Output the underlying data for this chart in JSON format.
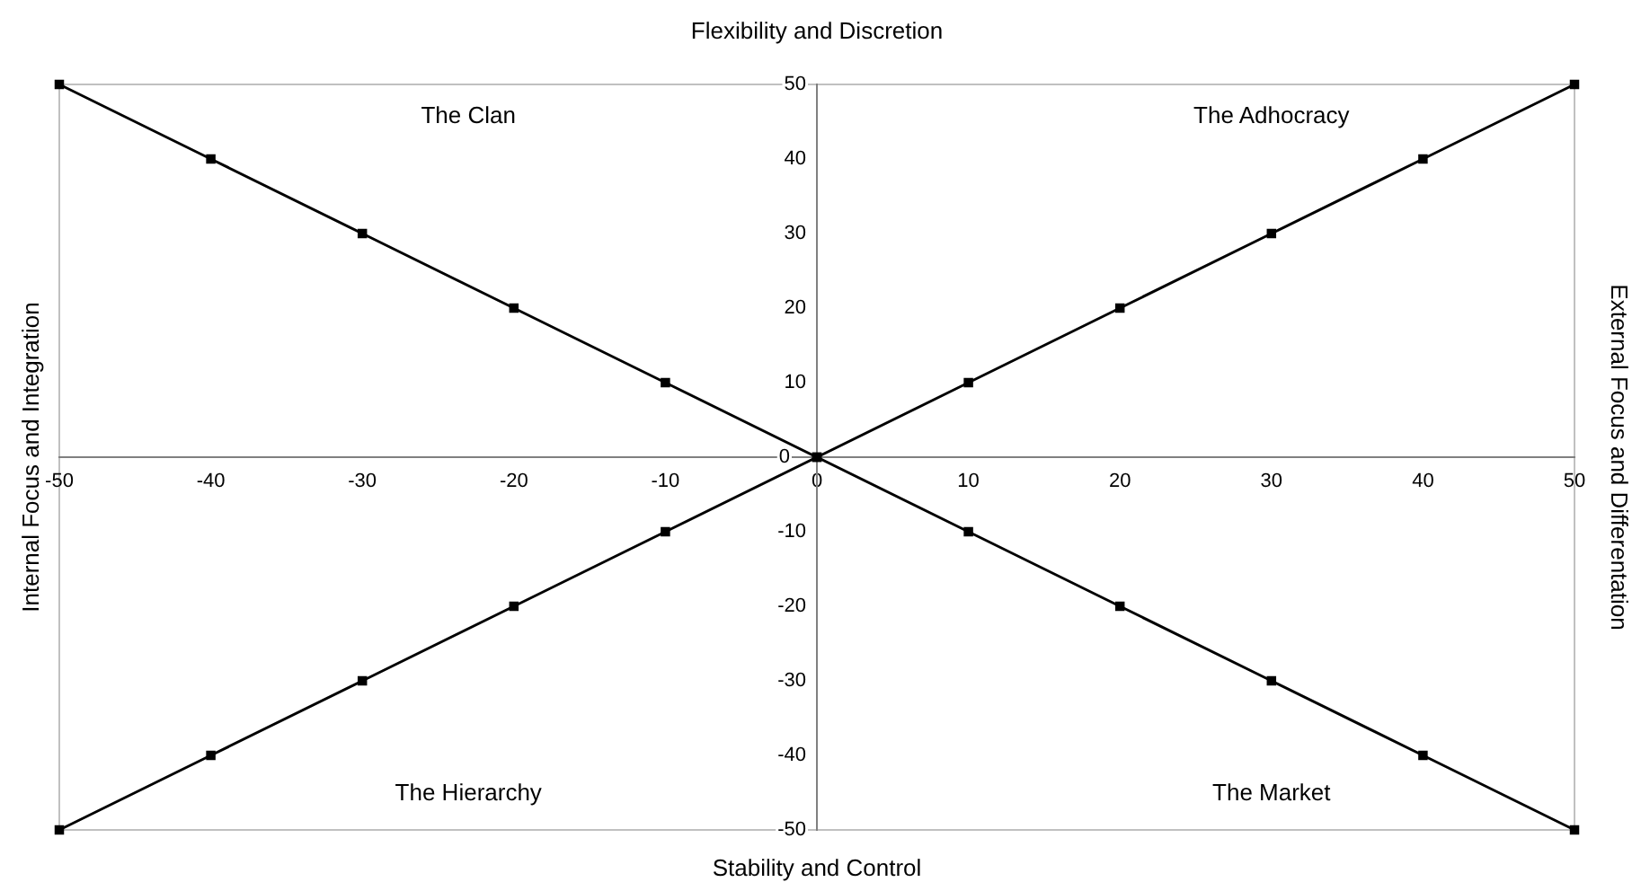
{
  "chart_data": {
    "type": "line",
    "title": "Flexibility and Discretion",
    "xlabel": "Stability and Control",
    "ylabel": "Internal Focus and Integration",
    "y2label": "External Focus and Differentation",
    "annotations": [
      "The Clan",
      "The Adhocracy",
      "The Hierarchy",
      "The Market"
    ],
    "x": [
      -50,
      -40,
      -30,
      -20,
      -10,
      0,
      10,
      20,
      30,
      40,
      50
    ],
    "series": [
      {
        "color": "#000000",
        "values": [
          50,
          40,
          30,
          20,
          10,
          0,
          -10,
          -20,
          -30,
          -40,
          -50
        ]
      },
      {
        "color": "#000000",
        "values": [
          -50,
          -40,
          -30,
          -20,
          -10,
          0,
          10,
          20,
          30,
          40,
          50
        ]
      }
    ],
    "xlim": [
      -50,
      50
    ],
    "xticks": [
      -50,
      -40,
      -30,
      -20,
      -10,
      0,
      10,
      20,
      30,
      40,
      50
    ],
    "ylim": [
      -50,
      50
    ],
    "yticks": [
      -50,
      -40,
      -30,
      -20,
      -10,
      0,
      10,
      20,
      30,
      40,
      50
    ],
    "grid": false,
    "legend": false,
    "marker": "square",
    "line_style": "solid"
  }
}
